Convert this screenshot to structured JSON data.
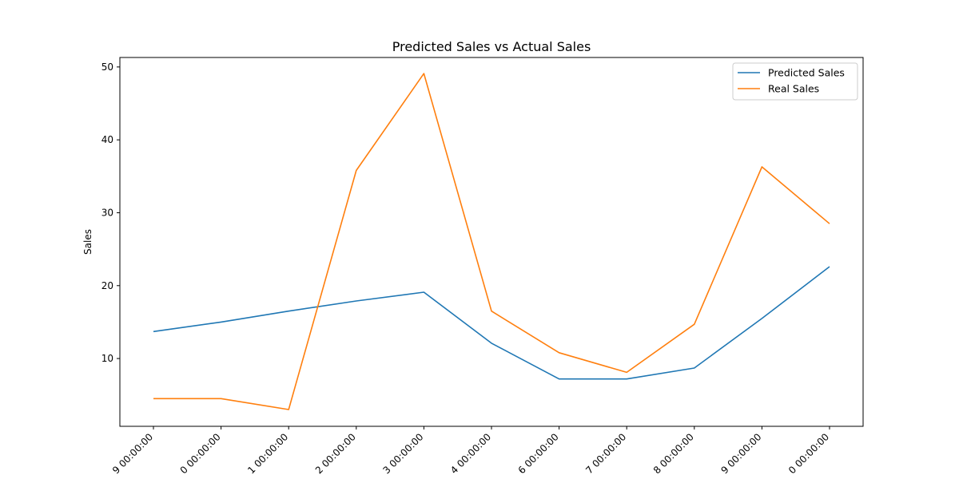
{
  "chart_data": {
    "type": "line",
    "title": "Predicted Sales vs Actual Sales",
    "xlabel": "",
    "ylabel": "Sales",
    "categories": [
      "9 00:00:00",
      "0 00:00:00",
      "1 00:00:00",
      "2 00:00:00",
      "3 00:00:00",
      "4 00:00:00",
      "6 00:00:00",
      "7 00:00:00",
      "8 00:00:00",
      "9 00:00:00",
      "0 00:00:00"
    ],
    "yticks": [
      10,
      20,
      30,
      40,
      50
    ],
    "ylim": [
      0.7,
      51.3
    ],
    "grid": false,
    "legend_position": "top-right",
    "series": [
      {
        "name": "Predicted Sales",
        "color": "#1f77b4",
        "values": [
          13.7,
          15.0,
          16.5,
          17.9,
          19.1,
          12.1,
          7.2,
          7.2,
          8.7,
          15.5,
          22.6
        ]
      },
      {
        "name": "Real Sales",
        "color": "#ff7f0e",
        "values": [
          4.5,
          4.5,
          3.0,
          35.8,
          49.1,
          16.5,
          10.8,
          8.1,
          14.7,
          36.3,
          28.5
        ]
      }
    ]
  }
}
